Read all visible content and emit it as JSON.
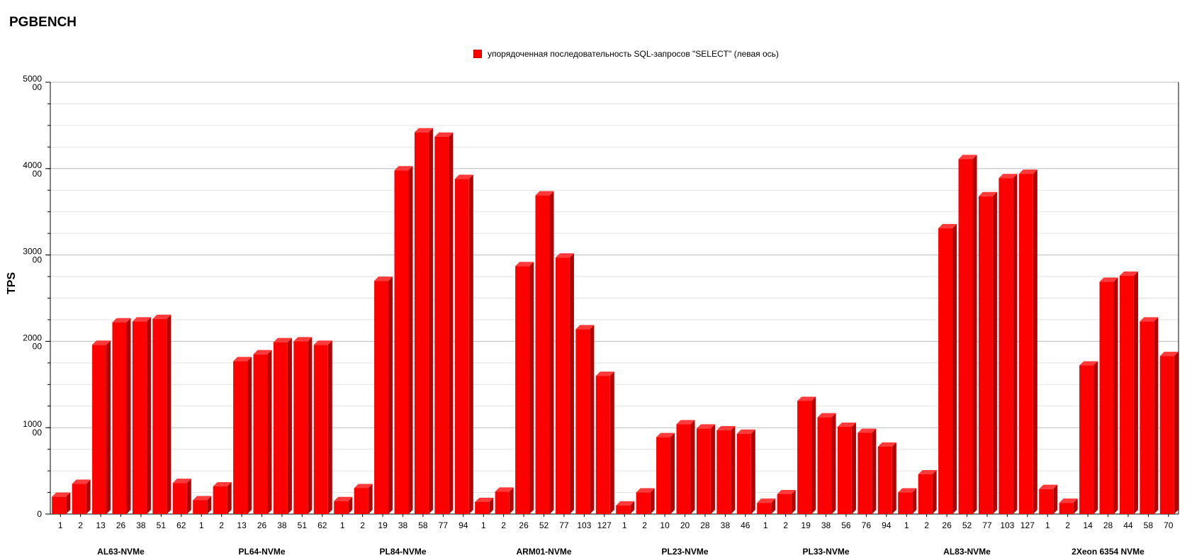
{
  "chart_data": {
    "type": "bar",
    "title": "PGBENCH",
    "ylabel": "TPS",
    "xlabel": "",
    "ylim": [
      0,
      500000
    ],
    "y_ticks": [
      {
        "value": 0,
        "label": [
          "0"
        ]
      },
      {
        "value": 100000,
        "label": [
          "1000",
          "00"
        ]
      },
      {
        "value": 200000,
        "label": [
          "2000",
          "00"
        ]
      },
      {
        "value": 300000,
        "label": [
          "3000",
          "00"
        ]
      },
      {
        "value": 400000,
        "label": [
          "4000",
          "00"
        ]
      },
      {
        "value": 500000,
        "label": [
          "5000",
          "00"
        ]
      }
    ],
    "y_minor_step": 25000,
    "grid": true,
    "legend_position": "top-center",
    "bar_color": "#ff0000",
    "bar_side_color": "#b30000",
    "bar_top_color": "#ff3a3a",
    "series": [
      {
        "name": "упорядоченная последовательность SQL-запросов \"SELECT\" (левая ось)"
      }
    ],
    "groups": [
      {
        "name": "AL63-NVMe",
        "categories": [
          "1",
          "2",
          "13",
          "26",
          "38",
          "51",
          "62"
        ],
        "values": [
          20000,
          35000,
          196000,
          222000,
          223000,
          226000,
          36000
        ]
      },
      {
        "name": "PL64-NVMe",
        "categories": [
          "1",
          "2",
          "13",
          "26",
          "38",
          "51",
          "62"
        ],
        "values": [
          16000,
          32000,
          177000,
          185000,
          199000,
          200000,
          196000
        ]
      },
      {
        "name": "PL84-NVMe",
        "categories": [
          "1",
          "2",
          "19",
          "38",
          "58",
          "77",
          "94"
        ],
        "values": [
          15000,
          30000,
          270000,
          398000,
          442000,
          437000,
          388000
        ]
      },
      {
        "name": "ARM01-NVMe",
        "categories": [
          "1",
          "2",
          "26",
          "52",
          "77",
          "103",
          "127"
        ],
        "values": [
          14000,
          26000,
          287000,
          369000,
          297000,
          214000,
          160000
        ]
      },
      {
        "name": "PL23-NVMe",
        "categories": [
          "1",
          "2",
          "10",
          "20",
          "28",
          "38",
          "46"
        ],
        "values": [
          10000,
          25000,
          89000,
          104000,
          99000,
          97000,
          93000
        ]
      },
      {
        "name": "PL33-NVMe",
        "categories": [
          "1",
          "2",
          "19",
          "38",
          "56",
          "76",
          "94"
        ],
        "values": [
          13000,
          23000,
          131000,
          112000,
          101000,
          94000,
          78000
        ]
      },
      {
        "name": "AL83-NVMe",
        "categories": [
          "1",
          "2",
          "26",
          "52",
          "77",
          "103",
          "127"
        ],
        "values": [
          25000,
          46000,
          331000,
          411000,
          368000,
          389000,
          394000
        ]
      },
      {
        "name": "2Xeon 6354 NVMe",
        "categories": [
          "1",
          "2",
          "14",
          "28",
          "44",
          "58",
          "70"
        ],
        "values": [
          29000,
          13000,
          172000,
          269000,
          276000,
          223000,
          183000
        ]
      }
    ]
  }
}
